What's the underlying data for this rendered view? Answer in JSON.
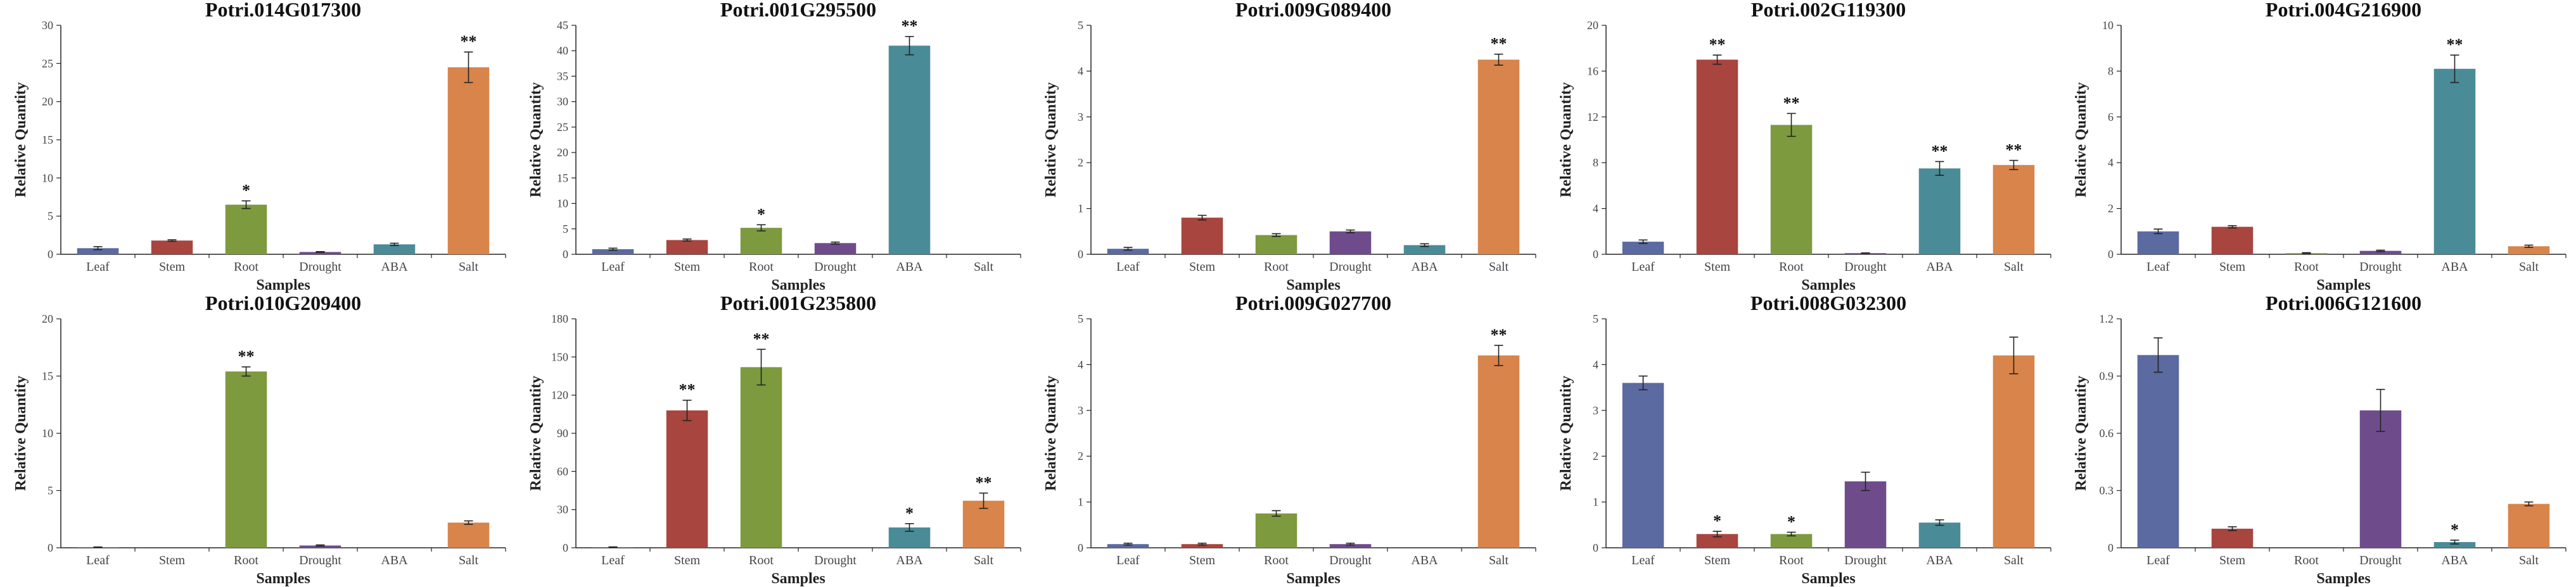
{
  "colors": {
    "Leaf": "#5b6aa0",
    "Stem": "#a8453e",
    "Root": "#7d9a3f",
    "Drought": "#6e4c8c",
    "ABA": "#4a8b98",
    "Salt": "#d8844a"
  },
  "chart_data": [
    {
      "type": "bar",
      "title": "Potri.014G017300",
      "xlabel": "Samples",
      "ylabel": "Relative Quantity",
      "categories": [
        "Leaf",
        "Stem",
        "Root",
        "Drought",
        "ABA",
        "Salt"
      ],
      "values": [
        0.8,
        1.8,
        6.5,
        0.3,
        1.3,
        24.5
      ],
      "errors": [
        0.2,
        0.1,
        0.5,
        0.05,
        0.15,
        2.0
      ],
      "significance": [
        "",
        "",
        "*",
        "",
        "",
        "**"
      ],
      "ylim": [
        0,
        30
      ],
      "yticks": [
        0,
        5,
        10,
        15,
        20,
        25,
        30
      ],
      "ytick_labels": [
        "0",
        "5",
        "10",
        "15",
        "20",
        "25",
        "30"
      ]
    },
    {
      "type": "bar",
      "title": "Potri.001G295500",
      "xlabel": "Samples",
      "ylabel": "Relative Quantity",
      "categories": [
        "Leaf",
        "Stem",
        "Root",
        "Drought",
        "ABA",
        "Salt"
      ],
      "values": [
        1.0,
        2.8,
        5.2,
        2.2,
        41.0,
        0.0
      ],
      "errors": [
        0.2,
        0.2,
        0.6,
        0.2,
        1.8,
        0.0
      ],
      "significance": [
        "",
        "",
        "*",
        "",
        "**",
        ""
      ],
      "ylim": [
        0,
        45
      ],
      "yticks": [
        0,
        5,
        10,
        15,
        20,
        25,
        30,
        35,
        40,
        45
      ],
      "ytick_labels": [
        "0",
        "5",
        "10",
        "15",
        "20",
        "25",
        "30",
        "35",
        "40",
        "45"
      ]
    },
    {
      "type": "bar",
      "title": "Potri.009G089400",
      "xlabel": "Samples",
      "ylabel": "Relative Quantity",
      "categories": [
        "Leaf",
        "Stem",
        "Root",
        "Drought",
        "ABA",
        "Salt"
      ],
      "values": [
        0.12,
        0.8,
        0.42,
        0.5,
        0.2,
        4.25
      ],
      "errors": [
        0.03,
        0.05,
        0.03,
        0.03,
        0.03,
        0.12
      ],
      "significance": [
        "",
        "",
        "",
        "",
        "",
        "**"
      ],
      "ylim": [
        0,
        5
      ],
      "yticks": [
        0,
        1,
        2,
        3,
        4,
        5
      ],
      "ytick_labels": [
        "0",
        "1",
        "2",
        "3",
        "4",
        "5"
      ]
    },
    {
      "type": "bar",
      "title": "Potri.002G119300",
      "xlabel": "Samples",
      "ylabel": "Relative Quantity",
      "categories": [
        "Leaf",
        "Stem",
        "Root",
        "Drought",
        "ABA",
        "Salt"
      ],
      "values": [
        1.1,
        17.0,
        11.3,
        0.1,
        7.5,
        7.8
      ],
      "errors": [
        0.15,
        0.4,
        1.0,
        0.02,
        0.6,
        0.4
      ],
      "significance": [
        "",
        "**",
        "**",
        "",
        "**",
        "**"
      ],
      "ylim": [
        0,
        20
      ],
      "yticks": [
        0,
        4,
        8,
        12,
        16,
        20
      ],
      "ytick_labels": [
        "0",
        "4",
        "8",
        "12",
        "16",
        "20"
      ]
    },
    {
      "type": "bar",
      "title": "Potri.004G216900",
      "xlabel": "Samples",
      "ylabel": "Relative Quantity",
      "categories": [
        "Leaf",
        "Stem",
        "Root",
        "Drought",
        "ABA",
        "Salt"
      ],
      "values": [
        1.0,
        1.2,
        0.05,
        0.15,
        8.1,
        0.35
      ],
      "errors": [
        0.1,
        0.05,
        0.02,
        0.03,
        0.6,
        0.05
      ],
      "significance": [
        "",
        "",
        "",
        "",
        "**",
        ""
      ],
      "ylim": [
        0,
        10
      ],
      "yticks": [
        0,
        2,
        4,
        6,
        8,
        10
      ],
      "ytick_labels": [
        "0",
        "2",
        "4",
        "6",
        "8",
        "10"
      ]
    },
    {
      "type": "bar",
      "title": "Potri.010G209400",
      "xlabel": "Samples",
      "ylabel": "Relative Quantity",
      "categories": [
        "Leaf",
        "Stem",
        "Root",
        "Drought",
        "ABA",
        "Salt"
      ],
      "values": [
        0.05,
        0.0,
        15.4,
        0.2,
        0.0,
        2.2
      ],
      "errors": [
        0.02,
        0.0,
        0.4,
        0.05,
        0.0,
        0.15
      ],
      "significance": [
        "",
        "",
        "**",
        "",
        "",
        ""
      ],
      "ylim": [
        0,
        20
      ],
      "yticks": [
        0,
        5,
        10,
        15,
        20
      ],
      "ytick_labels": [
        "0",
        "5",
        "10",
        "15",
        "20"
      ]
    },
    {
      "type": "bar",
      "title": "Potri.001G235800",
      "xlabel": "Samples",
      "ylabel": "Relative Quantity",
      "categories": [
        "Leaf",
        "Stem",
        "Root",
        "Drought",
        "ABA",
        "Salt"
      ],
      "values": [
        0.5,
        108.0,
        142.0,
        0.0,
        16.0,
        37.0
      ],
      "errors": [
        0.2,
        8.0,
        14.0,
        0.0,
        3.0,
        6.0
      ],
      "significance": [
        "",
        "**",
        "**",
        "",
        "*",
        "**"
      ],
      "ylim": [
        0,
        180
      ],
      "yticks": [
        0,
        30,
        60,
        90,
        120,
        150,
        180
      ],
      "ytick_labels": [
        "0",
        "30",
        "60",
        "90",
        "120",
        "150",
        "180"
      ]
    },
    {
      "type": "bar",
      "title": "Potri.009G027700",
      "xlabel": "Samples",
      "ylabel": "Relative Quantity",
      "categories": [
        "Leaf",
        "Stem",
        "Root",
        "Drought",
        "ABA",
        "Salt"
      ],
      "values": [
        0.08,
        0.08,
        0.75,
        0.08,
        0.0,
        4.2
      ],
      "errors": [
        0.02,
        0.02,
        0.06,
        0.02,
        0.0,
        0.22
      ],
      "significance": [
        "",
        "",
        "",
        "",
        "",
        "**"
      ],
      "ylim": [
        0,
        5
      ],
      "yticks": [
        0,
        1,
        2,
        3,
        4,
        5
      ],
      "ytick_labels": [
        "0",
        "1",
        "2",
        "3",
        "4",
        "5"
      ]
    },
    {
      "type": "bar",
      "title": "Potri.008G032300",
      "xlabel": "Samples",
      "ylabel": "Relative Quantity",
      "categories": [
        "Leaf",
        "Stem",
        "Root",
        "Drought",
        "ABA",
        "Salt"
      ],
      "values": [
        3.6,
        0.3,
        0.3,
        1.45,
        0.55,
        4.2
      ],
      "errors": [
        0.15,
        0.06,
        0.04,
        0.2,
        0.06,
        0.4
      ],
      "significance": [
        "",
        "*",
        "*",
        "",
        "",
        ""
      ],
      "ylim": [
        0,
        5
      ],
      "yticks": [
        0,
        1,
        2,
        3,
        4,
        5
      ],
      "ytick_labels": [
        "0",
        "1",
        "2",
        "3",
        "4",
        "5"
      ]
    },
    {
      "type": "bar",
      "title": "Potri.006G121600",
      "xlabel": "Samples",
      "ylabel": "Relative Quantity",
      "categories": [
        "Leaf",
        "Stem",
        "Root",
        "Drought",
        "ABA",
        "Salt"
      ],
      "values": [
        1.01,
        0.1,
        0.0,
        0.72,
        0.03,
        0.23
      ],
      "errors": [
        0.09,
        0.01,
        0.0,
        0.11,
        0.01,
        0.01
      ],
      "significance": [
        "",
        "",
        "",
        "",
        "*",
        ""
      ],
      "ylim": [
        0,
        1.2
      ],
      "yticks": [
        0,
        0.3,
        0.6,
        0.9,
        1.2
      ],
      "ytick_labels": [
        "0",
        "0.3",
        "0.6",
        "0.9",
        "1.2"
      ]
    }
  ]
}
